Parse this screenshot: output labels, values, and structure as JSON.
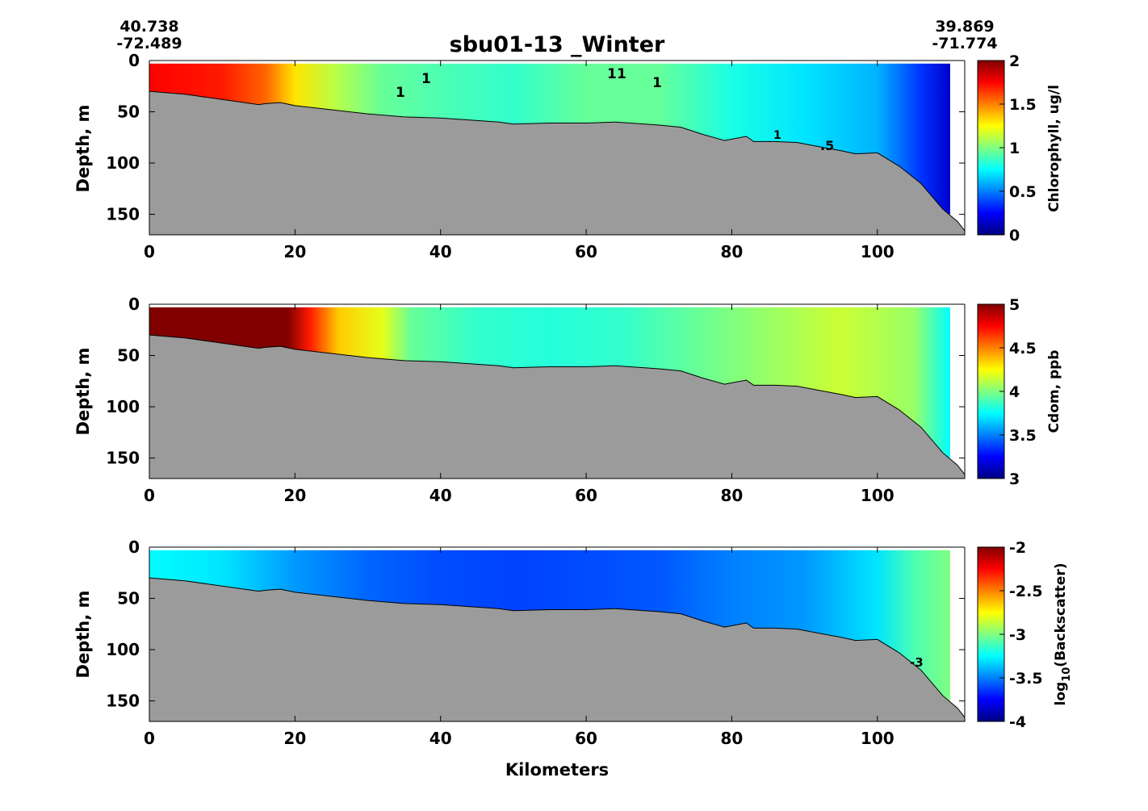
{
  "figure": {
    "title": "sbu01-13 _Winter",
    "start_coord": {
      "lat": "40.738",
      "lon": "-72.489"
    },
    "end_coord": {
      "lat": "39.869",
      "lon": "-71.774"
    },
    "xlabel": "Kilometers"
  },
  "colors": {
    "bathymetry": "#9b9b9b",
    "contour": "#000000",
    "colormap": "jet"
  },
  "chart_data": [
    {
      "type": "heatmap",
      "name": "chlorophyll",
      "ylabel": "Depth, m",
      "xlim": [
        0,
        112
      ],
      "ylim": [
        170,
        0
      ],
      "xticks": [
        "0",
        "20",
        "40",
        "60",
        "80",
        "100"
      ],
      "yticks": [
        "0",
        "50",
        "100",
        "150"
      ],
      "colorbar": {
        "label": "Chlorophyll, ug/l",
        "range": [
          0,
          2
        ],
        "ticks": [
          "0",
          "0.5",
          "1",
          "1.5",
          "2"
        ]
      },
      "contour_labels": [
        "1",
        "1",
        "1",
        "1",
        "1",
        "1",
        ".5"
      ],
      "anchors": [
        {
          "x": 0,
          "v": 1.75
        },
        {
          "x": 10,
          "v": 1.7
        },
        {
          "x": 16,
          "v": 1.55
        },
        {
          "x": 20,
          "v": 1.3
        },
        {
          "x": 26,
          "v": 1.1
        },
        {
          "x": 32,
          "v": 0.95
        },
        {
          "x": 40,
          "v": 0.9
        },
        {
          "x": 50,
          "v": 0.85
        },
        {
          "x": 60,
          "v": 0.95
        },
        {
          "x": 70,
          "v": 0.95
        },
        {
          "x": 80,
          "v": 0.8
        },
        {
          "x": 90,
          "v": 0.7
        },
        {
          "x": 100,
          "v": 0.6
        },
        {
          "x": 106,
          "v": 0.35
        },
        {
          "x": 110,
          "v": 0.15
        }
      ]
    },
    {
      "type": "heatmap",
      "name": "cdom",
      "ylabel": "Depth, m",
      "xlim": [
        0,
        112
      ],
      "ylim": [
        170,
        0
      ],
      "xticks": [
        "0",
        "20",
        "40",
        "60",
        "80",
        "100"
      ],
      "yticks": [
        "0",
        "50",
        "100",
        "150"
      ],
      "colorbar": {
        "label": "Cdom, ppb",
        "range": [
          3,
          5
        ],
        "ticks": [
          "3",
          "3.5",
          "4",
          "4.5",
          "5"
        ]
      },
      "anchors": [
        {
          "x": 0,
          "v": 5.0
        },
        {
          "x": 19,
          "v": 5.0
        },
        {
          "x": 22,
          "v": 4.7
        },
        {
          "x": 26,
          "v": 4.35
        },
        {
          "x": 32,
          "v": 4.2
        },
        {
          "x": 36,
          "v": 3.95
        },
        {
          "x": 45,
          "v": 3.85
        },
        {
          "x": 55,
          "v": 3.82
        },
        {
          "x": 65,
          "v": 3.85
        },
        {
          "x": 75,
          "v": 3.95
        },
        {
          "x": 85,
          "v": 4.05
        },
        {
          "x": 95,
          "v": 4.15
        },
        {
          "x": 105,
          "v": 4.05
        },
        {
          "x": 110,
          "v": 3.75
        }
      ]
    },
    {
      "type": "heatmap",
      "name": "backscatter",
      "ylabel": "Depth, m",
      "xlim": [
        0,
        112
      ],
      "ylim": [
        170,
        0
      ],
      "xticks": [
        "0",
        "20",
        "40",
        "60",
        "80",
        "100"
      ],
      "yticks": [
        "0",
        "50",
        "100",
        "150"
      ],
      "colorbar": {
        "label": "log10(Backscatter)",
        "label_main": "log",
        "label_sub": "10",
        "label_tail": "(Backscatter)",
        "range": [
          -4,
          -2
        ],
        "ticks": [
          "-4",
          "-3.5",
          "-3",
          "-2.5",
          "-2"
        ]
      },
      "contour_labels": [
        "-3"
      ],
      "anchors": [
        {
          "x": 0,
          "v": -3.25
        },
        {
          "x": 10,
          "v": -3.3
        },
        {
          "x": 20,
          "v": -3.45
        },
        {
          "x": 30,
          "v": -3.55
        },
        {
          "x": 40,
          "v": -3.6
        },
        {
          "x": 50,
          "v": -3.62
        },
        {
          "x": 60,
          "v": -3.6
        },
        {
          "x": 70,
          "v": -3.58
        },
        {
          "x": 80,
          "v": -3.5
        },
        {
          "x": 90,
          "v": -3.45
        },
        {
          "x": 100,
          "v": -3.3
        },
        {
          "x": 105,
          "v": -3.1
        },
        {
          "x": 110,
          "v": -3.0
        }
      ]
    }
  ],
  "bathymetry": {
    "x": [
      0,
      5,
      10,
      15,
      16,
      18,
      20,
      25,
      30,
      35,
      40,
      48,
      50,
      55,
      60,
      64,
      70,
      73,
      76,
      79,
      82,
      83,
      86,
      89,
      92,
      95,
      97,
      100,
      103,
      106,
      109,
      111,
      112
    ],
    "depth": [
      30,
      33,
      38,
      43,
      42,
      41,
      44,
      48,
      52,
      55,
      56,
      60,
      62,
      61,
      61,
      60,
      63,
      65,
      72,
      78,
      74,
      79,
      79,
      80,
      84,
      88,
      91,
      90,
      103,
      120,
      145,
      157,
      166
    ]
  }
}
